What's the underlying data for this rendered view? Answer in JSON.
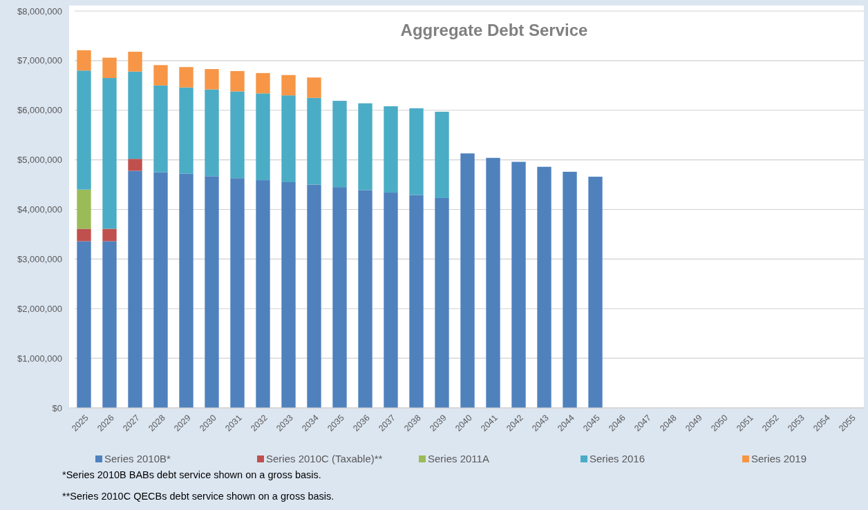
{
  "chart_data": {
    "type": "bar",
    "title": "Aggregate Debt Service",
    "stacked": true,
    "grid": "y",
    "legend": "bottom",
    "categories": [
      "2025",
      "2026",
      "2027",
      "2028",
      "2029",
      "2030",
      "2031",
      "2032",
      "2033",
      "2034",
      "2035",
      "2036",
      "2037",
      "2038",
      "2039",
      "2040",
      "2041",
      "2042",
      "2043",
      "2044",
      "2045",
      "2046",
      "2047",
      "2048",
      "2049",
      "2050",
      "2051",
      "2052",
      "2053",
      "2054",
      "2055"
    ],
    "ylim": [
      0,
      8000000
    ],
    "yticks": [
      {
        "value": 0,
        "label": "$0"
      },
      {
        "value": 1000000,
        "label": "$1,000,000"
      },
      {
        "value": 2000000,
        "label": "$2,000,000"
      },
      {
        "value": 3000000,
        "label": "$3,000,000"
      },
      {
        "value": 4000000,
        "label": "$4,000,000"
      },
      {
        "value": 5000000,
        "label": "$5,000,000"
      },
      {
        "value": 6000000,
        "label": "$6,000,000"
      },
      {
        "value": 7000000,
        "label": "$7,000,000"
      },
      {
        "value": 8000000,
        "label": "$8,000,000"
      }
    ],
    "series": [
      {
        "name": "Series 2010B*",
        "color": "#4f81bd",
        "values": [
          3360000,
          3360000,
          4780000,
          4750000,
          4720000,
          4670000,
          4630000,
          4590000,
          4550000,
          4500000,
          4450000,
          4390000,
          4340000,
          4290000,
          4230000,
          5130000,
          5040000,
          4960000,
          4860000,
          4760000,
          4660000,
          null,
          null,
          null,
          null,
          null,
          null,
          null,
          null,
          null,
          null
        ]
      },
      {
        "name": "Series 2010C (Taxable)**",
        "color": "#c0504d",
        "values": [
          250000,
          250000,
          240000,
          null,
          null,
          null,
          null,
          null,
          null,
          null,
          null,
          null,
          null,
          null,
          null,
          null,
          null,
          null,
          null,
          null,
          null,
          null,
          null,
          null,
          null,
          null,
          null,
          null,
          null,
          null,
          null
        ]
      },
      {
        "name": "Series 2011A",
        "color": "#9bbb59",
        "values": [
          790000,
          null,
          null,
          null,
          null,
          null,
          null,
          null,
          null,
          null,
          null,
          null,
          null,
          null,
          null,
          null,
          null,
          null,
          null,
          null,
          null,
          null,
          null,
          null,
          null,
          null,
          null,
          null,
          null,
          null,
          null
        ]
      },
      {
        "name": "Series 2016",
        "color": "#4bacc6",
        "values": [
          2400000,
          3040000,
          1760000,
          1750000,
          1740000,
          1750000,
          1750000,
          1750000,
          1750000,
          1750000,
          1740000,
          1750000,
          1740000,
          1750000,
          1740000,
          null,
          null,
          null,
          null,
          null,
          null,
          null,
          null,
          null,
          null,
          null,
          null,
          null,
          null,
          null,
          null
        ]
      },
      {
        "name": "Series 2019",
        "color": "#f79646",
        "values": [
          410000,
          410000,
          400000,
          410000,
          410000,
          410000,
          410000,
          410000,
          410000,
          410000,
          null,
          null,
          null,
          null,
          null,
          null,
          null,
          null,
          null,
          null,
          null,
          null,
          null,
          null,
          null,
          null,
          null,
          null,
          null,
          null,
          null
        ]
      }
    ],
    "annotations": [
      "*Series 2010B BABs debt service shown on a gross basis.",
      "**Series 2010C QECBs debt service shown on a gross basis."
    ]
  }
}
